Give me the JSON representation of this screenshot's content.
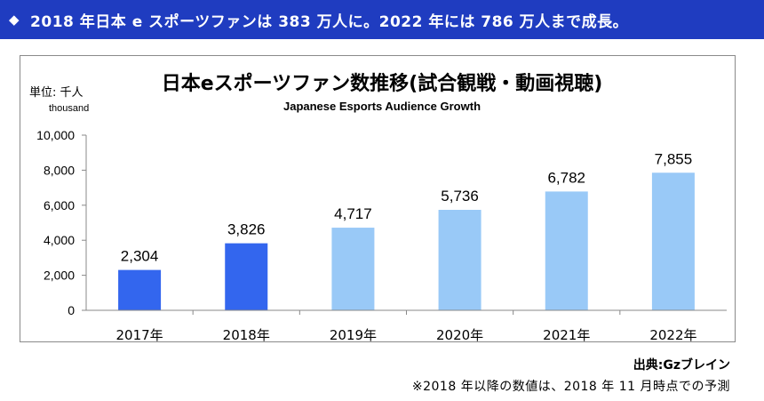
{
  "banner": {
    "icon": "diamond-icon",
    "text": "2018 年日本 e スポーツファンは 383 万人に。2022 年には 786 万人まで成長。"
  },
  "chart_data": {
    "type": "bar",
    "title": "日本eスポーツファン数推移(試合観戦・動画視聴)",
    "subtitle": "Japanese Esports Audience Growth",
    "ylabel": "単位: 千人",
    "ylabel_sub": "thousand",
    "xlabel": "",
    "ylim": [
      0,
      10000
    ],
    "yticks": [
      0,
      2000,
      4000,
      6000,
      8000,
      10000
    ],
    "ytick_labels": [
      "0",
      "2,000",
      "4,000",
      "6,000",
      "8,000",
      "10,000"
    ],
    "categories": [
      "2017年",
      "2018年",
      "2019年",
      "2020年",
      "2021年",
      "2022年"
    ],
    "values": [
      2304,
      3826,
      4717,
      5736,
      6782,
      7855
    ],
    "value_labels": [
      "2,304",
      "3,826",
      "4,717",
      "5,736",
      "6,782",
      "7,855"
    ],
    "bar_colors": [
      "#3366ee",
      "#3366ee",
      "#99c9f7",
      "#99c9f7",
      "#99c9f7",
      "#99c9f7"
    ],
    "grid": false,
    "legend": "none"
  },
  "footer": {
    "source": "出典:Gzブレイン",
    "note": "※2018 年以降の数値は、2018 年 11 月時点での予測"
  }
}
